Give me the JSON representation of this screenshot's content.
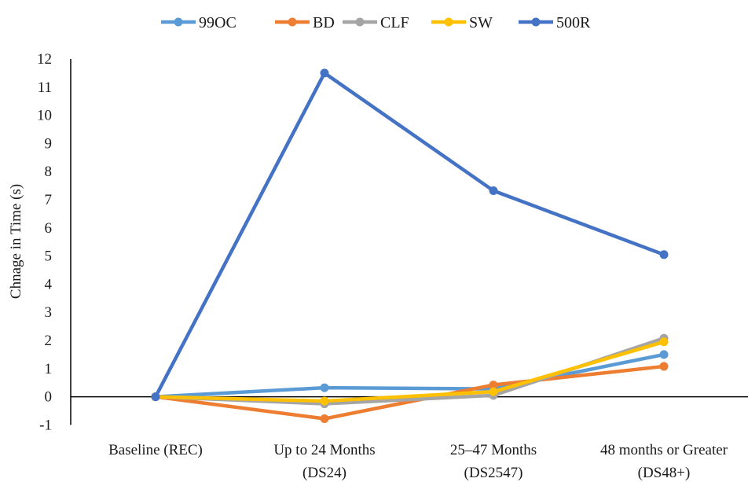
{
  "chart_data": {
    "type": "line",
    "title": "",
    "xlabel": "",
    "ylabel": "Chnage in Time (s)",
    "ylim": [
      -1,
      12
    ],
    "yticks": [
      -1,
      0,
      1,
      2,
      3,
      4,
      5,
      6,
      7,
      8,
      9,
      10,
      11,
      12
    ],
    "grid": false,
    "legend_position": "top",
    "categories": [
      [
        "Baseline (REC)"
      ],
      [
        "Up to 24 Months",
        "(DS24)"
      ],
      [
        "25–47 Months",
        "(DS2547)"
      ],
      [
        "48 months or Greater",
        "(DS48+)"
      ]
    ],
    "series": [
      {
        "name": "99OC",
        "color": "#5B9BD5",
        "values": [
          0,
          0.32,
          0.28,
          1.5
        ]
      },
      {
        "name": "BD",
        "color": "#ED7D31",
        "values": [
          0,
          -0.78,
          0.42,
          1.08
        ]
      },
      {
        "name": "CLF",
        "color": "#A5A5A5",
        "values": [
          0,
          -0.25,
          0.05,
          2.08
        ]
      },
      {
        "name": "SW",
        "color": "#FFC000",
        "values": [
          0,
          -0.15,
          0.18,
          1.95
        ]
      },
      {
        "name": "500R",
        "color": "#4472C4",
        "values": [
          0,
          11.5,
          7.32,
          5.05
        ]
      }
    ]
  }
}
